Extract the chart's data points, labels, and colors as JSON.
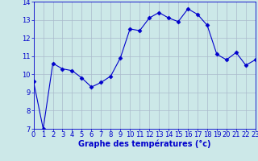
{
  "x": [
    0,
    1,
    2,
    3,
    4,
    5,
    6,
    7,
    8,
    9,
    10,
    11,
    12,
    13,
    14,
    15,
    16,
    17,
    18,
    19,
    20,
    21,
    22,
    23
  ],
  "y": [
    9.6,
    7.0,
    10.6,
    10.3,
    10.2,
    9.8,
    9.3,
    9.55,
    9.9,
    10.9,
    12.5,
    12.4,
    13.1,
    13.4,
    13.1,
    12.9,
    13.6,
    13.3,
    12.7,
    11.1,
    10.8,
    11.2,
    10.5,
    10.8
  ],
  "line_color": "#0000cc",
  "marker": "D",
  "marker_size": 2.5,
  "bg_color": "#cce8e8",
  "grid_color": "#aabbcc",
  "xlabel": "Graphe des températures (°c)",
  "xlabel_color": "#0000cc",
  "xlabel_fontsize": 7,
  "tick_color": "#0000cc",
  "tick_fontsize": 6,
  "ylim": [
    7,
    14
  ],
  "xlim": [
    0,
    23
  ],
  "yticks": [
    7,
    8,
    9,
    10,
    11,
    12,
    13,
    14
  ],
  "xticks": [
    0,
    1,
    2,
    3,
    4,
    5,
    6,
    7,
    8,
    9,
    10,
    11,
    12,
    13,
    14,
    15,
    16,
    17,
    18,
    19,
    20,
    21,
    22,
    23
  ]
}
